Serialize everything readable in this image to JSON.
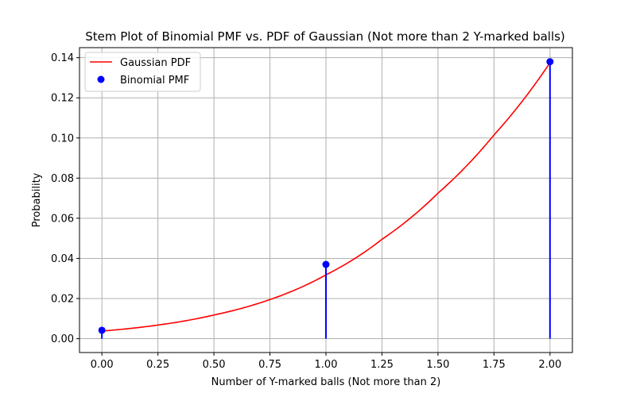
{
  "chart_data": {
    "type": "line",
    "title": "Stem Plot of Binomial PMF vs. PDF of Gaussian (Not more than 2 Y-marked balls)",
    "xlabel": "Number of Y-marked balls (Not more than 2)",
    "ylabel": "Probability",
    "xlim": [
      -0.1,
      2.1
    ],
    "ylim": [
      -0.0069,
      0.145
    ],
    "grid": true,
    "legend_position": "top-left",
    "xticks": [
      "0.00",
      "0.25",
      "0.50",
      "0.75",
      "1.00",
      "1.25",
      "1.50",
      "1.75",
      "2.00"
    ],
    "yticks": [
      "0.00",
      "0.02",
      "0.04",
      "0.06",
      "0.08",
      "0.10",
      "0.12",
      "0.14"
    ],
    "series": [
      {
        "name": "Gaussian PDF",
        "kind": "line",
        "color": "#ff0000",
        "x": [
          0.0,
          0.25,
          0.5,
          0.75,
          1.0,
          1.25,
          1.5,
          1.75,
          2.0
        ],
        "y": [
          0.0038,
          0.0068,
          0.0118,
          0.0195,
          0.0318,
          0.0495,
          0.0725,
          0.1015,
          0.1375
        ]
      },
      {
        "name": "Binomial PMF",
        "kind": "stem",
        "color": "#0000ff",
        "x": [
          0,
          1,
          2
        ],
        "y": [
          0.0042,
          0.037,
          0.138
        ]
      }
    ]
  }
}
